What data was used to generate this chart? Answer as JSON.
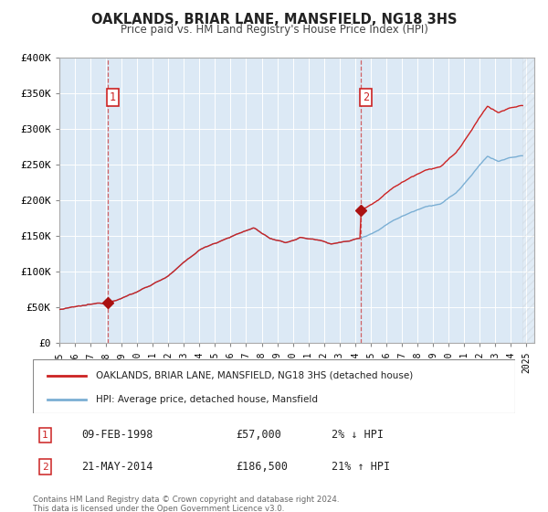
{
  "title": "OAKLANDS, BRIAR LANE, MANSFIELD, NG18 3HS",
  "subtitle": "Price paid vs. HM Land Registry's House Price Index (HPI)",
  "legend_line1": "OAKLANDS, BRIAR LANE, MANSFIELD, NG18 3HS (detached house)",
  "legend_line2": "HPI: Average price, detached house, Mansfield",
  "sale1_date": "09-FEB-1998",
  "sale1_price": 57000,
  "sale1_hpi": "2% ↓ HPI",
  "sale2_date": "21-MAY-2014",
  "sale2_price": 186500,
  "sale2_hpi": "21% ↑ HPI",
  "copyright": "Contains HM Land Registry data © Crown copyright and database right 2024.\nThis data is licensed under the Open Government Licence v3.0.",
  "hpi_color": "#7bafd4",
  "price_color": "#cc2222",
  "marker_color": "#aa1111",
  "bg_color": "#dce9f5",
  "vline_color": "#cc3333",
  "ylim": [
    0,
    400000
  ],
  "xlim_start": 1995.0,
  "xlim_end": 2025.5,
  "sale1_x": 1998.12,
  "sale1_y": 57000,
  "sale2_x": 2014.38,
  "sale2_y": 186500,
  "hatch_start": 2024.75
}
